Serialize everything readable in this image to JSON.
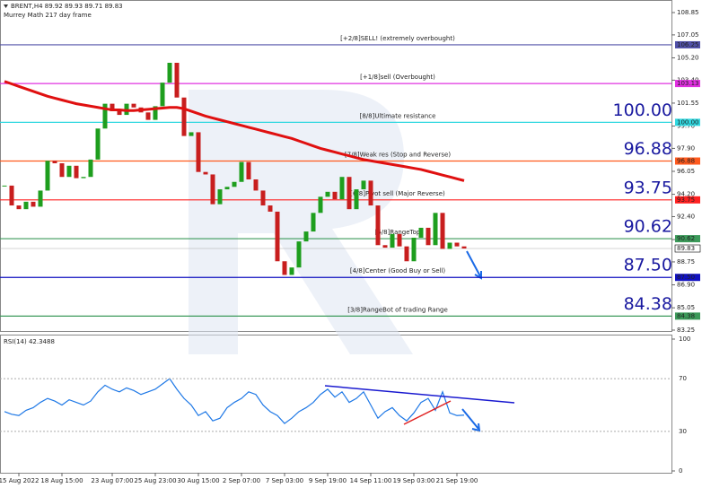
{
  "header": {
    "symbol": "BRENT,H4  89.92 89.93 89.71 89.83",
    "indicator": "Murrey Math 217 day frame"
  },
  "chart_data": [
    {
      "type": "candlestick",
      "categories": [
        null,
        null,
        "15 Aug 2022",
        null,
        null,
        null,
        null,
        null,
        "18 Aug 15:00",
        null,
        null,
        null,
        null,
        null,
        null,
        "23 Aug 07:00",
        null,
        null,
        null,
        null,
        null,
        "25 Aug 23:00",
        null,
        null,
        null,
        null,
        null,
        "30 Aug 15:00",
        null,
        null,
        null,
        null,
        null,
        "2 Sep 07:00",
        null,
        null,
        null,
        null,
        null,
        "7 Sep 03:00",
        null,
        null,
        null,
        null,
        null,
        "9 Sep 19:00",
        null,
        null,
        null,
        null,
        null,
        "14 Sep 11:00",
        null,
        null,
        null,
        null,
        null,
        "19 Sep 03:00",
        null,
        null,
        null,
        null,
        null,
        "21 Sep 19:00",
        null
      ],
      "closes": [
        94.9,
        93.3,
        93.0,
        93.6,
        93.2,
        94.5,
        96.9,
        96.7,
        95.6,
        96.5,
        95.5,
        95.6,
        97.0,
        99.5,
        101.5,
        100.9,
        100.6,
        101.5,
        101.2,
        100.8,
        100.2,
        101.3,
        103.2,
        104.8,
        102.0,
        98.9,
        99.2,
        96.0,
        95.8,
        93.4,
        94.6,
        94.8,
        95.2,
        96.8,
        95.4,
        94.5,
        93.3,
        92.8,
        88.8,
        87.7,
        88.3,
        90.4,
        91.2,
        92.7,
        94.0,
        94.4,
        93.8,
        95.6,
        93.0,
        94.6,
        95.3,
        93.3,
        90.1,
        89.9,
        91.0,
        90.0,
        88.8,
        90.7,
        91.5,
        90.1,
        92.7,
        89.8,
        90.3,
        90.0,
        89.83
      ],
      "up_color": "#1e9e1e",
      "down_color": "#c81e1e",
      "ma": {
        "color": "#e01010",
        "values": [
          103.3,
          103.1,
          102.9,
          102.7,
          102.5,
          102.3,
          102.1,
          101.95,
          101.8,
          101.65,
          101.5,
          101.4,
          101.3,
          101.2,
          101.1,
          101.0,
          101.0,
          100.95,
          100.95,
          101.0,
          101.05,
          101.1,
          101.15,
          101.2,
          101.2,
          101.1,
          100.9,
          100.7,
          100.5,
          100.35,
          100.2,
          100.05,
          99.9,
          99.75,
          99.6,
          99.45,
          99.3,
          99.15,
          99.0,
          98.85,
          98.7,
          98.5,
          98.3,
          98.1,
          97.9,
          97.75,
          97.6,
          97.45,
          97.3,
          97.15,
          97.0,
          96.9,
          96.8,
          96.7,
          96.6,
          96.5,
          96.4,
          96.3,
          96.2,
          96.05,
          95.9,
          95.75,
          95.6,
          95.45,
          95.3
        ]
      },
      "levels": [
        {
          "value": 106.25,
          "label": "106.25",
          "name": "[+2/8]SELL! (extremely overbought)",
          "color": "#5050a8",
          "big": false
        },
        {
          "value": 103.13,
          "label": "103.13",
          "name": "[+1/8]sell (Overbought)",
          "color": "#e030e0",
          "big": false
        },
        {
          "value": 100,
          "label": "100.00",
          "name": "[8/8]Ultimate resistance",
          "color": "#30d8e0",
          "big": true
        },
        {
          "value": 96.88,
          "label": "96.88",
          "name": "[7/8]Weak res (Stop and Reverse)",
          "color": "#ff5a1e",
          "big": true
        },
        {
          "value": 93.75,
          "label": "93.75",
          "name": "[6/8]Pivot sell (Major Reverse)",
          "color": "#ff2020",
          "big": true
        },
        {
          "value": 90.62,
          "label": "90.62",
          "name": "[5/8]RangeTop",
          "color": "#3c9a5a",
          "big": true
        },
        {
          "value": 87.5,
          "label": "87.50",
          "name": "[4/8]Center (Good Buy or Sell)",
          "color": "#1010c0",
          "big": true
        },
        {
          "value": 84.38,
          "label": "84.38",
          "name": "[3/8]RangeBot of trading Range",
          "color": "#3c9a5a",
          "big": true
        }
      ],
      "current": {
        "value": 89.83,
        "label": "89.83"
      },
      "ylim": [
        83.25,
        108.85
      ],
      "yticks": [
        108.85,
        107.05,
        {
          "value": 105.2,
          "label": "105.20"
        },
        {
          "value": 103.4,
          "label": "103.40"
        },
        101.55,
        {
          "value": 99.7,
          "label": "99.70"
        },
        {
          "value": 97.9,
          "label": "97.90"
        },
        96.05,
        {
          "value": 94.2,
          "label": "94.20"
        },
        {
          "value": 92.4,
          "label": "92.40"
        },
        90.55,
        88.75,
        {
          "value": 86.9,
          "label": "86.90"
        },
        85.05,
        83.25
      ]
    },
    {
      "type": "line",
      "title": "RSI(14) 42.3488",
      "color": "#1e78e6",
      "values": [
        45,
        43,
        42,
        46,
        48,
        52,
        55,
        53,
        50,
        54,
        52,
        50,
        53,
        60,
        65,
        62,
        60,
        63,
        61,
        58,
        60,
        62,
        66,
        70,
        62,
        55,
        50,
        42,
        45,
        38,
        40,
        48,
        52,
        55,
        60,
        58,
        50,
        45,
        42,
        36,
        40,
        45,
        48,
        52,
        58,
        62,
        56,
        60,
        52,
        55,
        60,
        50,
        40,
        45,
        48,
        42,
        38,
        44,
        52,
        55,
        46,
        60,
        44,
        42,
        42.3488
      ],
      "ylim": [
        0,
        100
      ],
      "yticks": [
        100,
        70,
        30,
        0
      ]
    }
  ]
}
